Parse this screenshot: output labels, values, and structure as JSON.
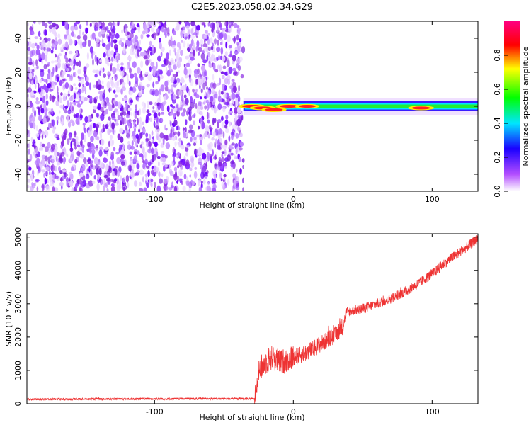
{
  "title": "C2E5.2023.058.02.34.G29",
  "chart_data": [
    {
      "type": "heatmap",
      "xlabel": "Height of straight line (km)",
      "ylabel": "Frequency (Hz)",
      "xlim": [
        -192,
        133
      ],
      "ylim": [
        -50,
        50
      ],
      "xticks": [
        -100,
        0,
        100
      ],
      "xtick_labels": [
        "-100",
        "0",
        "100"
      ],
      "yticks": [
        -40,
        -20,
        0,
        20,
        40
      ],
      "ytick_labels": [
        "-40",
        "-20",
        "0",
        "20",
        "40"
      ],
      "noise_region_x": [
        -192,
        -36
      ],
      "signal_region_x": [
        -36,
        133
      ],
      "signal_center_frequency": 0,
      "signal_peaks": [
        {
          "x": -30,
          "frequency": 0,
          "amplitude": 0.95
        },
        {
          "x": -22,
          "frequency": -1,
          "amplitude": 0.9
        },
        {
          "x": -14,
          "frequency": -2,
          "amplitude": 0.85
        },
        {
          "x": -3,
          "frequency": 0,
          "amplitude": 0.95
        },
        {
          "x": 10,
          "frequency": 0,
          "amplitude": 0.8
        },
        {
          "x": 92,
          "frequency": -1,
          "amplitude": 0.9
        }
      ],
      "colorbar": {
        "label": "Normalized spectral amplitude",
        "range": [
          0,
          1
        ],
        "ticks": [
          0.0,
          0.2,
          0.4,
          0.6,
          0.8
        ],
        "tick_labels": [
          "0.0",
          "0.2",
          "0.4",
          "0.6",
          "0.8"
        ],
        "colors": [
          "#ffffff",
          "#b34dff",
          "#1a00ff",
          "#00e6ff",
          "#00ff00",
          "#ffff00",
          "#ff0000",
          "#ff0080"
        ]
      },
      "grid": false
    },
    {
      "type": "line",
      "xlabel": "Height of straight line (km)",
      "ylabel": "SNR (10 * v/v)",
      "xlim": [
        -192,
        133
      ],
      "ylim": [
        0,
        5100
      ],
      "xticks": [
        -100,
        0,
        100
      ],
      "xtick_labels": [
        "-100",
        "0",
        "100"
      ],
      "yticks": [
        0,
        1000,
        2000,
        3000,
        4000,
        5000
      ],
      "ytick_labels": [
        "0",
        "1000",
        "2000",
        "3000",
        "4000",
        "5000"
      ],
      "color": "#ee3333",
      "x": [
        -192,
        -150,
        -100,
        -50,
        -28,
        -25,
        -20,
        -15,
        -10,
        -5,
        0,
        5,
        10,
        20,
        30,
        36,
        38,
        50,
        60,
        70,
        80,
        90,
        100,
        110,
        120,
        133
      ],
      "y": [
        130,
        140,
        145,
        150,
        150,
        1000,
        1250,
        1400,
        1250,
        1300,
        1400,
        1450,
        1550,
        1800,
        2050,
        2350,
        2750,
        2850,
        3000,
        3150,
        3350,
        3600,
        3900,
        4250,
        4550,
        4950
      ],
      "grid": false
    }
  ]
}
